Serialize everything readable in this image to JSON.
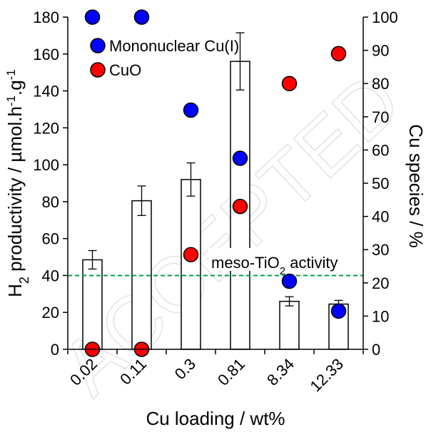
{
  "chart_data": {
    "type": "bar",
    "xlabel": "Cu loading / wt%",
    "ylabel_parts": [
      "H",
      "2",
      " productivity / µmol.h",
      "-1",
      ".g",
      "-1"
    ],
    "y2label": "Cu species / %",
    "ylim": [
      0,
      180
    ],
    "y2lim": [
      0,
      100
    ],
    "yticks": [
      0,
      20,
      40,
      60,
      80,
      100,
      120,
      140,
      160,
      180
    ],
    "y2ticks": [
      0,
      10,
      20,
      30,
      40,
      50,
      60,
      70,
      80,
      90,
      100
    ],
    "categories": [
      "0.02",
      "0.11",
      "0.3",
      "0.81",
      "8.34",
      "12.33"
    ],
    "bars": {
      "axis": "left",
      "values": [
        48.5,
        80.5,
        92,
        156,
        26,
        24.5
      ],
      "errors": [
        5,
        8,
        9,
        15.5,
        2.5,
        2
      ]
    },
    "series": [
      {
        "name": "Mononuclear  Cu(I)",
        "axis": "right",
        "color": "#0000ff",
        "values": [
          100,
          100,
          72,
          57.5,
          20.5,
          11.5
        ]
      },
      {
        "name": "CuO",
        "axis": "right",
        "color": "#ff0000",
        "values": [
          0,
          0,
          28.5,
          43,
          80,
          89
        ]
      }
    ],
    "reference_line": {
      "value": 40,
      "axis": "left",
      "color": "#00a050",
      "label_parts": [
        "meso-TiO",
        "2",
        " activity"
      ]
    },
    "legend_position": "top-left",
    "grid": false,
    "watermark": "ACCEPTED"
  }
}
